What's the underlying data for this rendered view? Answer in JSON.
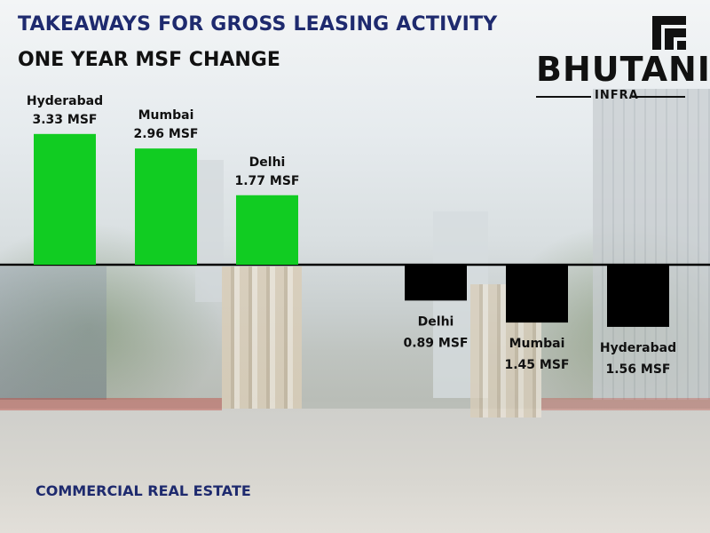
{
  "title": "TAKEAWAYS FOR GROSS LEASING ACTIVITY",
  "subtitle": "ONE YEAR MSF CHANGE",
  "footer": "COMMERCIAL REAL ESTATE",
  "logo": {
    "name": "BHUTANI",
    "sub": "INFRA"
  },
  "colors": {
    "positive": "#11cc22",
    "negative": "#000000",
    "title": "#1e2a6e"
  },
  "chart_data": {
    "type": "bar",
    "unit": "MSF",
    "groups": [
      {
        "direction": "increase",
        "color": "#11cc22",
        "bars": [
          {
            "category": "Hyderabad",
            "value": 3.33,
            "label": "3.33 MSF"
          },
          {
            "category": "Mumbai",
            "value": 2.96,
            "label": "2.96 MSF"
          },
          {
            "category": "Delhi",
            "value": 1.77,
            "label": "1.77 MSF"
          }
        ]
      },
      {
        "direction": "decrease",
        "color": "#000000",
        "bars": [
          {
            "category": "Delhi",
            "value": 0.89,
            "label": "0.89 MSF"
          },
          {
            "category": "Mumbai",
            "value": 1.45,
            "label": "1.45  MSF"
          },
          {
            "category": "Hyderabad",
            "value": 1.56,
            "label": "1.56 MSF"
          }
        ]
      }
    ],
    "grid": false,
    "legend": "none"
  }
}
